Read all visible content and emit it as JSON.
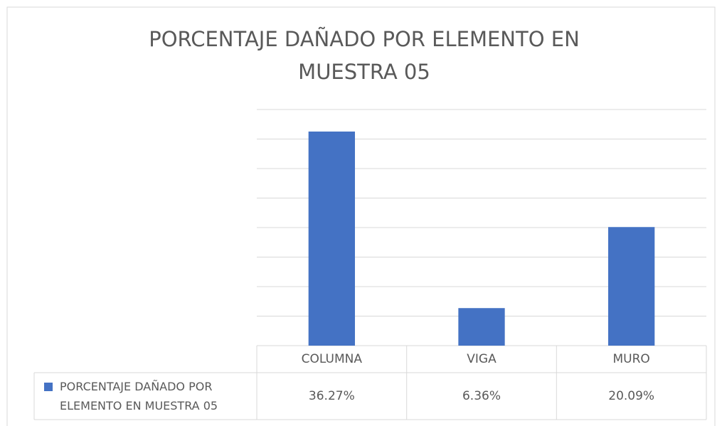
{
  "chart_data": {
    "type": "bar",
    "title": "PORCENTAJE DAÑADO POR ELEMENTO EN MUESTRA 05",
    "categories": [
      "COLUMNA",
      "VIGA",
      "MURO"
    ],
    "series": [
      {
        "name": "PORCENTAJE DAÑADO POR ELEMENTO EN MUESTRA 05",
        "color": "#4472c4",
        "values": [
          36.27,
          6.36,
          20.09
        ],
        "value_labels": [
          "36.27%",
          "6.36%",
          "20.09%"
        ]
      }
    ],
    "ylim": [
      0,
      40
    ],
    "yticks": [
      0,
      5,
      10,
      15,
      20,
      25,
      30,
      35,
      40
    ],
    "grid": true,
    "data_table": true
  }
}
